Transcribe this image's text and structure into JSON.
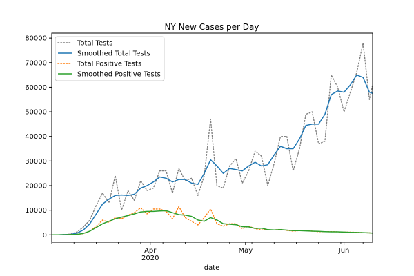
{
  "chart_data": {
    "type": "line",
    "title": "NY New Cases per Day",
    "xlabel": "date",
    "ylabel": "",
    "x_start": "2020-03-01",
    "x_end": "2020-06-10",
    "ylim": [
      -3000,
      82000
    ],
    "yticks": [
      0,
      10000,
      20000,
      30000,
      40000,
      50000,
      60000,
      70000,
      80000
    ],
    "ytick_labels": [
      "0",
      "10000",
      "20000",
      "30000",
      "40000",
      "50000",
      "60000",
      "70000",
      "80000"
    ],
    "xticks": [
      "2020-04-01",
      "2020-05-01",
      "2020-06-01"
    ],
    "xtick_labels": [
      "Apr",
      "May",
      "Jun"
    ],
    "xtick_sublabel": "2020",
    "grid": false,
    "legend_position": "upper left",
    "x": [
      "2020-03-01",
      "2020-03-03",
      "2020-03-05",
      "2020-03-07",
      "2020-03-09",
      "2020-03-11",
      "2020-03-13",
      "2020-03-15",
      "2020-03-17",
      "2020-03-19",
      "2020-03-21",
      "2020-03-23",
      "2020-03-25",
      "2020-03-27",
      "2020-03-29",
      "2020-03-31",
      "2020-04-02",
      "2020-04-04",
      "2020-04-06",
      "2020-04-08",
      "2020-04-10",
      "2020-04-12",
      "2020-04-14",
      "2020-04-16",
      "2020-04-18",
      "2020-04-20",
      "2020-04-22",
      "2020-04-24",
      "2020-04-26",
      "2020-04-28",
      "2020-04-30",
      "2020-05-02",
      "2020-05-04",
      "2020-05-06",
      "2020-05-08",
      "2020-05-10",
      "2020-05-12",
      "2020-05-14",
      "2020-05-16",
      "2020-05-18",
      "2020-05-20",
      "2020-05-22",
      "2020-05-24",
      "2020-05-26",
      "2020-05-28",
      "2020-05-30",
      "2020-06-01",
      "2020-06-03",
      "2020-06-05",
      "2020-06-07",
      "2020-06-09",
      "2020-06-10"
    ],
    "series": [
      {
        "name": "Total Tests",
        "color": "#7f7f7f",
        "style": "dotted",
        "values": [
          0,
          0,
          100,
          300,
          1200,
          3200,
          6000,
          12000,
          17000,
          13000,
          24000,
          10000,
          18000,
          14000,
          22000,
          18000,
          19000,
          26000,
          26000,
          17000,
          27000,
          22000,
          23000,
          16000,
          24000,
          47000,
          20000,
          19000,
          28000,
          31000,
          21000,
          26000,
          34000,
          32000,
          20000,
          29000,
          40000,
          40000,
          26000,
          35000,
          49000,
          50000,
          37000,
          38000,
          65000,
          60000,
          50000,
          58000,
          66000,
          78000,
          55000,
          61000
        ]
      },
      {
        "name": "Smoothed Total Tests",
        "color": "#1f77b4",
        "style": "solid",
        "values": [
          0,
          0,
          100,
          200,
          700,
          2000,
          4500,
          8500,
          12500,
          14500,
          16000,
          16200,
          16000,
          16500,
          19000,
          20000,
          21500,
          23500,
          23000,
          21500,
          22500,
          22500,
          21000,
          20500,
          25000,
          30500,
          28000,
          25000,
          27000,
          26500,
          26000,
          28000,
          29500,
          28000,
          28500,
          32500,
          36000,
          35000,
          35000,
          39000,
          44500,
          45000,
          45000,
          49000,
          57000,
          58500,
          58000,
          61000,
          65000,
          64000,
          58000,
          57500
        ]
      },
      {
        "name": "Total Positive Tests",
        "color": "#ff7f0e",
        "style": "dotted",
        "values": [
          0,
          0,
          50,
          100,
          200,
          500,
          1500,
          3500,
          6000,
          5000,
          7000,
          6500,
          8000,
          9000,
          11000,
          8500,
          10500,
          10500,
          9500,
          6500,
          11500,
          7000,
          5500,
          4000,
          7000,
          10500,
          4500,
          3500,
          4500,
          4500,
          2500,
          3500,
          2500,
          2000,
          2000,
          2000,
          2200,
          1800,
          1500,
          1700,
          1700,
          1500,
          1300,
          1300,
          1300,
          1200,
          1100,
          1100,
          1000,
          900,
          800,
          700
        ]
      },
      {
        "name": "Smoothed Positive Tests",
        "color": "#2ca02c",
        "style": "solid",
        "values": [
          0,
          0,
          50,
          100,
          200,
          600,
          1500,
          3000,
          4500,
          5500,
          6500,
          7200,
          7800,
          8500,
          9300,
          9500,
          9500,
          9700,
          9800,
          9000,
          8200,
          8000,
          7500,
          6000,
          5500,
          7000,
          6000,
          4500,
          4300,
          4100,
          3300,
          3200,
          2600,
          2700,
          2100,
          2000,
          2100,
          1900,
          1700,
          1700,
          1600,
          1500,
          1400,
          1300,
          1200,
          1200,
          1100,
          1000,
          950,
          900,
          800,
          700
        ]
      }
    ]
  }
}
